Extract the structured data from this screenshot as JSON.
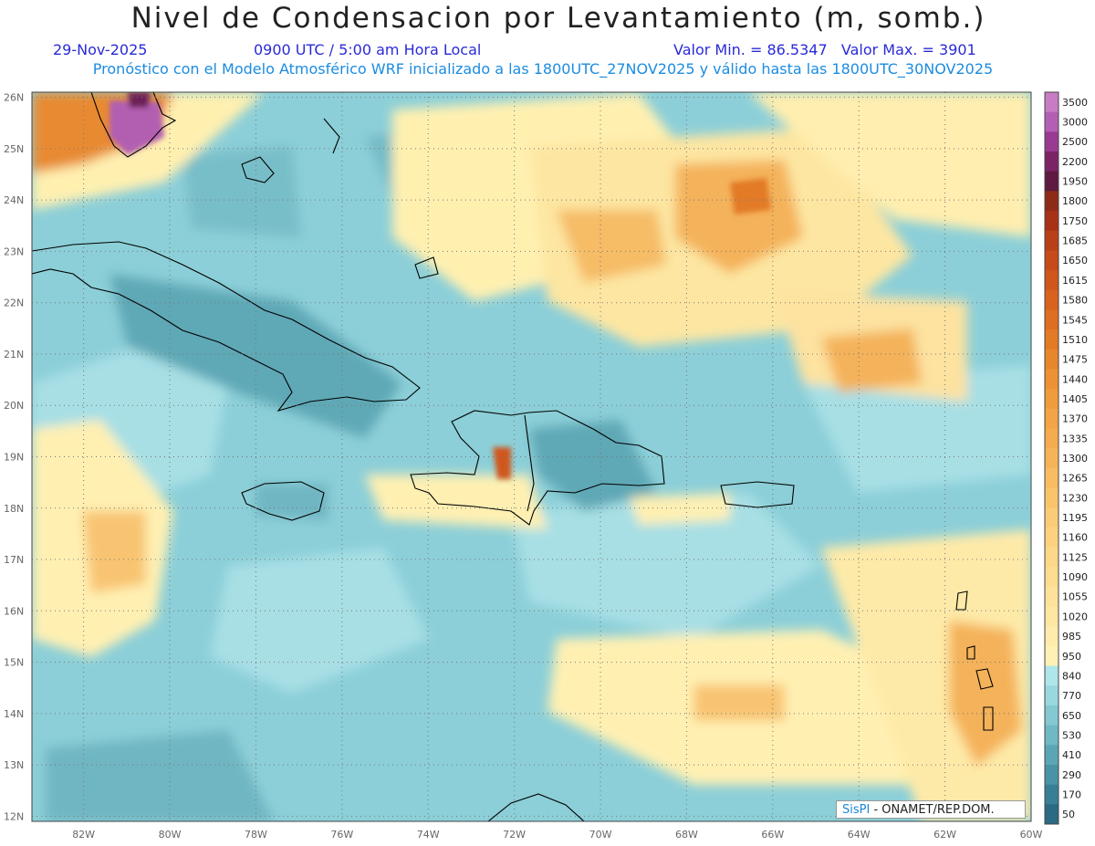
{
  "header": {
    "title": "Nivel de Condensacion por Levantamiento (m, somb.)",
    "date": "29-Nov-2025",
    "time": "0900 UTC / 5:00 am Hora Local",
    "min_max": "Valor Min. = 86.5347   Valor Max. = 3901",
    "forecast_note": "Pronóstico con el Modelo Atmosférico WRF inicializado a las 1800UTC_27NOV2025 y válido hasta las  1800UTC_30NOV2025"
  },
  "credit": {
    "brand": "SisPI",
    "org": " - ONAMET/REP.DOM."
  },
  "map": {
    "lon_range": [
      -83.2,
      -60
    ],
    "lat_range": [
      11.9,
      26.1
    ],
    "lat_labels": [
      "26N",
      "25N",
      "24N",
      "23N",
      "22N",
      "21N",
      "20N",
      "19N",
      "18N",
      "17N",
      "16N",
      "15N",
      "14N",
      "13N",
      "12N"
    ],
    "lon_labels": [
      "82W",
      "80W",
      "78W",
      "76W",
      "74W",
      "72W",
      "70W",
      "68W",
      "66W",
      "64W",
      "62W",
      "60W"
    ],
    "grid": true,
    "grid_style": "dotted"
  },
  "colorbar": {
    "levels": [
      "3500",
      "3000",
      "2500",
      "2200",
      "1950",
      "1800",
      "1750",
      "1685",
      "1650",
      "1615",
      "1580",
      "1545",
      "1510",
      "1475",
      "1440",
      "1405",
      "1370",
      "1335",
      "1300",
      "1265",
      "1230",
      "1195",
      "1160",
      "1125",
      "1090",
      "1055",
      "1020",
      "985",
      "950",
      "840",
      "770",
      "650",
      "530",
      "410",
      "290",
      "170",
      "50"
    ],
    "colors": [
      "#c77cc5",
      "#b45fb4",
      "#9a3a92",
      "#7a2466",
      "#5e1a40",
      "#8e2a18",
      "#a83216",
      "#b84018",
      "#c64a1a",
      "#d0561c",
      "#d8621e",
      "#de6e22",
      "#e27a26",
      "#e8862c",
      "#ec9234",
      "#ef9c3c",
      "#f2a446",
      "#f4ac4e",
      "#f6b458",
      "#f8bc62",
      "#f9c46c",
      "#fbcc76",
      "#fcd280",
      "#fdd88a",
      "#fedd92",
      "#fee29a",
      "#fee7a3",
      "#ffecac",
      "#fff1b5",
      "#aee6ea",
      "#9ad8df",
      "#84c8d2",
      "#6fb8c4",
      "#5aa6b5",
      "#4894a6",
      "#387f95",
      "#2a6a83"
    ]
  }
}
